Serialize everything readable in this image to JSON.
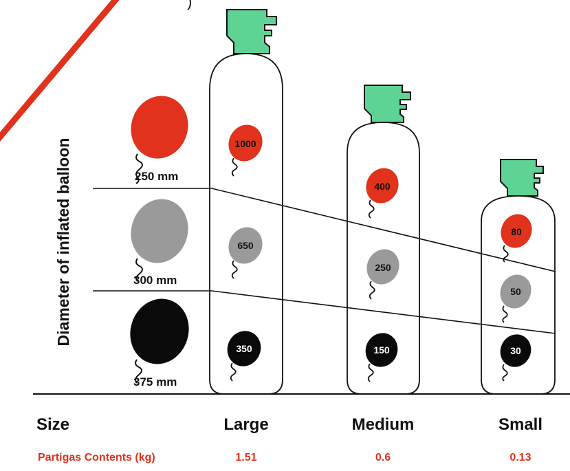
{
  "colors": {
    "red": "#e0321c",
    "grey": "#9a9a9a",
    "black": "#0a0a0a",
    "cap": "#5fd394",
    "accent": "#e0321c",
    "line": "#111111"
  },
  "axis_label": "Diameter of inflated balloon",
  "diameters": [
    {
      "label": "250 mm",
      "color": "red"
    },
    {
      "label": "300 mm",
      "color": "grey"
    },
    {
      "label": "375 mm",
      "color": "black"
    }
  ],
  "size_label": "Size",
  "contents_label": "Partigas Contents (kg)",
  "cylinders": [
    {
      "size": "Large",
      "contents": "1.51",
      "counts": [
        "1000",
        "650",
        "350"
      ]
    },
    {
      "size": "Medium",
      "contents": "0.6",
      "counts": [
        "400",
        "250",
        "150"
      ]
    },
    {
      "size": "Small",
      "contents": "0.13",
      "counts": [
        "80",
        "50",
        "30"
      ]
    }
  ]
}
